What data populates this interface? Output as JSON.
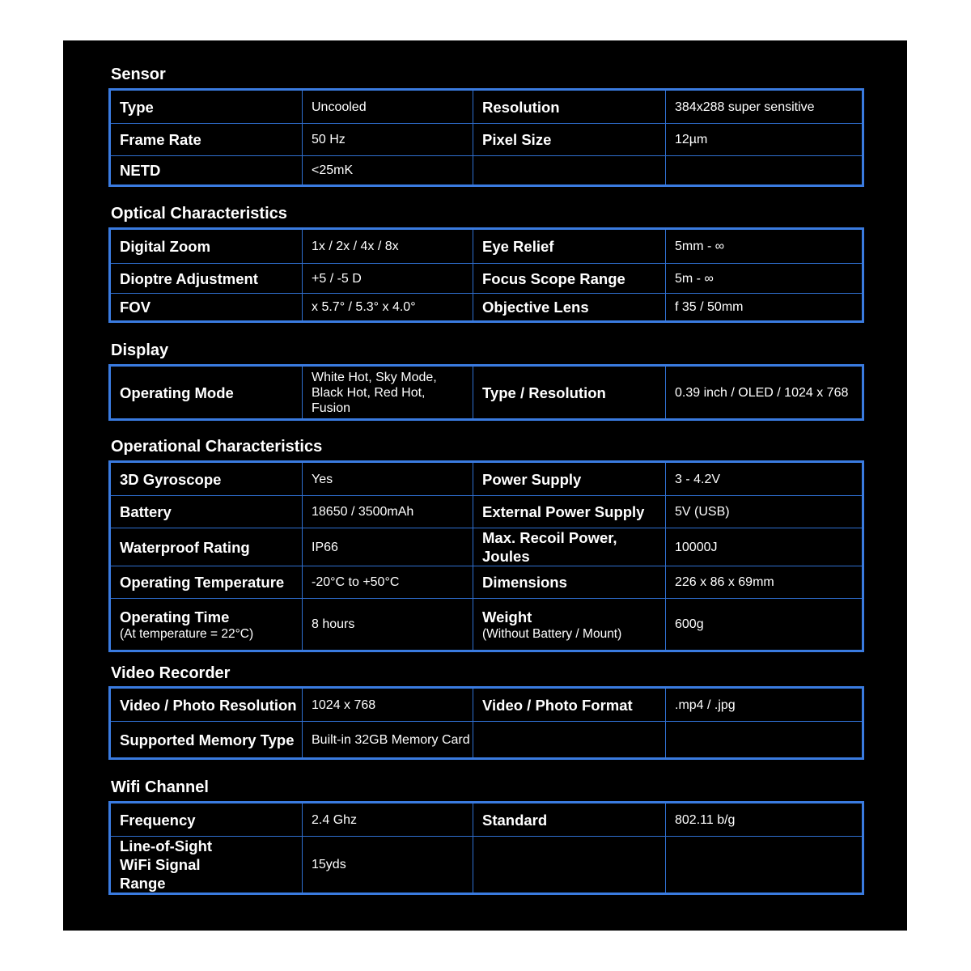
{
  "colors": {
    "background": "#000000",
    "border": "#3a7be0",
    "text": "#ffffff"
  },
  "sections": [
    {
      "title": "Sensor",
      "rows": [
        [
          {
            "label": "Type"
          },
          {
            "value": "Uncooled"
          },
          {
            "label": "Resolution"
          },
          {
            "value": "384x288 super sensitive"
          }
        ],
        [
          {
            "label": "Frame Rate"
          },
          {
            "value": "50 Hz"
          },
          {
            "label": "Pixel Size"
          },
          {
            "value": "12µm"
          }
        ],
        [
          {
            "label": "NETD"
          },
          {
            "value": "<25mK"
          },
          {
            "label": ""
          },
          {
            "value": ""
          }
        ]
      ]
    },
    {
      "title": "Optical Characteristics",
      "rows": [
        [
          {
            "label": "Digital Zoom"
          },
          {
            "value": "1x / 2x / 4x / 8x"
          },
          {
            "label": "Eye Relief"
          },
          {
            "value": "5mm - ∞"
          }
        ],
        [
          {
            "label": "Dioptre Adjustment"
          },
          {
            "value": "+5 / -5 D"
          },
          {
            "label": "Focus Scope Range"
          },
          {
            "value": "5m - ∞"
          }
        ],
        [
          {
            "label": "FOV"
          },
          {
            "value": " x 5.7° / 5.3° x 4.0°"
          },
          {
            "label": "Objective Lens"
          },
          {
            "value": "f 35 / 50mm"
          }
        ]
      ]
    },
    {
      "title": "Display",
      "rows": [
        [
          {
            "label": "Operating Mode"
          },
          {
            "value": "White Hot, Sky Mode, Black Hot, Red Hot, Fusion"
          },
          {
            "label": "Type / Resolution"
          },
          {
            "value": "0.39 inch / OLED / 1024 x 768"
          }
        ]
      ]
    },
    {
      "title": "Operational Characteristics",
      "rows": [
        [
          {
            "label": "3D Gyroscope"
          },
          {
            "value": "Yes"
          },
          {
            "label": "Power Supply"
          },
          {
            "value": "3 - 4.2V"
          }
        ],
        [
          {
            "label": "Battery"
          },
          {
            "value": "18650 / 3500mAh"
          },
          {
            "label": "External Power Supply"
          },
          {
            "value": "5V (USB)"
          }
        ],
        [
          {
            "label": "Waterproof Rating"
          },
          {
            "value": "IP66"
          },
          {
            "label": "Max. Recoil Power, Joules"
          },
          {
            "value": "10000J"
          }
        ],
        [
          {
            "label": "Operating Temperature"
          },
          {
            "value": "-20°C to +50°C"
          },
          {
            "label": "Dimensions"
          },
          {
            "value": "226 x 86 x 69mm"
          }
        ],
        [
          {
            "label": "Operating Time",
            "sub": "(At temperature = 22°C)"
          },
          {
            "value": "8 hours"
          },
          {
            "label": "Weight",
            "sub": "(Without Battery / Mount)"
          },
          {
            "value": "600g"
          }
        ]
      ]
    },
    {
      "title": "Video Recorder",
      "rows": [
        [
          {
            "label": "Video / Photo Resolution"
          },
          {
            "value": "1024 x 768"
          },
          {
            "label": "Video / Photo Format"
          },
          {
            "value": ".mp4 / .jpg"
          }
        ],
        [
          {
            "label": "Supported Memory Type"
          },
          {
            "value": "Built-in 32GB Memory Card"
          },
          {
            "label": ""
          },
          {
            "value": ""
          }
        ]
      ]
    },
    {
      "title": "Wifi Channel",
      "rows": [
        [
          {
            "label": "Frequency"
          },
          {
            "value": "2.4 Ghz"
          },
          {
            "label": "Standard"
          },
          {
            "value": "802.11 b/g"
          }
        ],
        [
          {
            "label": "Line-of-Sight WiFi Signal Range"
          },
          {
            "value": "15yds"
          },
          {
            "label": ""
          },
          {
            "value": ""
          }
        ]
      ]
    }
  ]
}
